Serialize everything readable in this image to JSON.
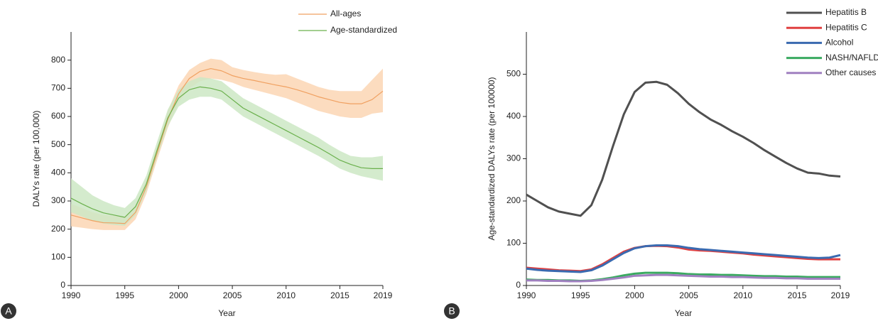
{
  "chart_data": [
    {
      "type": "line",
      "panel_label": "A",
      "xlabel": "Year",
      "ylabel": "DALYs rate (per 100,000)",
      "x": [
        1990,
        1991,
        1992,
        1993,
        1994,
        1995,
        1996,
        1997,
        1998,
        1999,
        2000,
        2001,
        2002,
        2003,
        2004,
        2005,
        2006,
        2007,
        2008,
        2009,
        2010,
        2011,
        2012,
        2013,
        2014,
        2015,
        2016,
        2017,
        2018,
        2019
      ],
      "xlim": [
        1990,
        2019
      ],
      "xticks": [
        1990,
        1995,
        2000,
        2005,
        2010,
        2015,
        2019
      ],
      "ylim": [
        0,
        900
      ],
      "yticks": [
        0,
        100,
        200,
        300,
        400,
        500,
        600,
        700,
        800
      ],
      "legend": "top-right",
      "series": [
        {
          "name": "All-ages",
          "color": "#f0a060",
          "band_color": "#fbd6b4",
          "values": [
            250,
            240,
            230,
            223,
            222,
            220,
            260,
            350,
            470,
            590,
            680,
            735,
            760,
            770,
            762,
            745,
            735,
            728,
            720,
            712,
            705,
            695,
            683,
            670,
            660,
            650,
            645,
            645,
            660,
            690
          ],
          "lower": [
            210,
            205,
            200,
            197,
            197,
            197,
            235,
            325,
            445,
            560,
            650,
            700,
            725,
            735,
            730,
            720,
            705,
            695,
            685,
            675,
            665,
            650,
            635,
            620,
            610,
            600,
            595,
            595,
            610,
            615
          ],
          "upper": [
            290,
            275,
            260,
            250,
            248,
            245,
            285,
            375,
            495,
            620,
            710,
            765,
            790,
            805,
            800,
            775,
            765,
            758,
            752,
            748,
            750,
            735,
            720,
            705,
            695,
            690,
            690,
            690,
            730,
            770
          ]
        },
        {
          "name": "Age-standardized",
          "color": "#6ab04c",
          "band_color": "#cde8c4",
          "values": [
            310,
            290,
            272,
            258,
            250,
            242,
            280,
            360,
            480,
            595,
            665,
            695,
            705,
            700,
            690,
            660,
            630,
            610,
            590,
            570,
            550,
            530,
            510,
            490,
            468,
            445,
            430,
            418,
            415,
            415
          ],
          "lower": [
            260,
            245,
            230,
            220,
            215,
            212,
            250,
            335,
            455,
            565,
            635,
            660,
            670,
            670,
            660,
            630,
            600,
            580,
            560,
            540,
            520,
            500,
            480,
            460,
            438,
            415,
            400,
            388,
            380,
            372
          ],
          "upper": [
            380,
            350,
            320,
            300,
            285,
            275,
            310,
            390,
            510,
            625,
            695,
            725,
            740,
            735,
            725,
            695,
            665,
            645,
            625,
            605,
            585,
            565,
            545,
            525,
            500,
            478,
            460,
            455,
            455,
            460
          ]
        }
      ]
    },
    {
      "type": "line",
      "panel_label": "B",
      "xlabel": "Year",
      "ylabel": "Age-standardized DALYs rate (per 100000)",
      "x": [
        1990,
        1991,
        1992,
        1993,
        1994,
        1995,
        1996,
        1997,
        1998,
        1999,
        2000,
        2001,
        2002,
        2003,
        2004,
        2005,
        2006,
        2007,
        2008,
        2009,
        2010,
        2011,
        2012,
        2013,
        2014,
        2015,
        2016,
        2017,
        2018,
        2019
      ],
      "xlim": [
        1990,
        2019
      ],
      "xticks": [
        1990,
        1995,
        2000,
        2005,
        2010,
        2015,
        2019
      ],
      "ylim": [
        0,
        600
      ],
      "yticks": [
        0,
        100,
        200,
        300,
        400,
        500
      ],
      "legend": "top-right",
      "series": [
        {
          "name": "Hepatitis B",
          "color": "#505050",
          "values": [
            215,
            200,
            185,
            175,
            170,
            165,
            190,
            250,
            330,
            405,
            458,
            480,
            482,
            475,
            455,
            430,
            410,
            393,
            380,
            365,
            352,
            337,
            320,
            305,
            290,
            277,
            267,
            265,
            260,
            258
          ]
        },
        {
          "name": "Hepatitis C",
          "color": "#e04040",
          "values": [
            42,
            40,
            38,
            36,
            35,
            34,
            38,
            50,
            65,
            80,
            89,
            93,
            94,
            93,
            90,
            85,
            83,
            82,
            80,
            78,
            76,
            73,
            71,
            69,
            67,
            65,
            63,
            62,
            62,
            62
          ]
        },
        {
          "name": "Alcohol",
          "color": "#3a6ab0",
          "values": [
            40,
            37,
            35,
            34,
            33,
            32,
            36,
            47,
            62,
            77,
            88,
            93,
            95,
            95,
            93,
            89,
            86,
            84,
            82,
            80,
            78,
            76,
            74,
            72,
            70,
            68,
            66,
            65,
            66,
            72
          ]
        },
        {
          "name": "NASH/NAFLD",
          "color": "#3aaa60",
          "values": [
            14,
            13,
            13,
            12,
            12,
            11,
            12,
            15,
            19,
            24,
            28,
            30,
            30,
            30,
            29,
            27,
            26,
            26,
            25,
            25,
            24,
            23,
            22,
            22,
            21,
            21,
            20,
            20,
            20,
            20
          ]
        },
        {
          "name": "Other causes",
          "color": "#a080c0",
          "values": [
            12,
            12,
            11,
            11,
            10,
            10,
            11,
            13,
            16,
            19,
            23,
            24,
            25,
            25,
            24,
            23,
            22,
            21,
            21,
            20,
            20,
            19,
            18,
            18,
            17,
            17,
            16,
            16,
            16,
            16
          ]
        }
      ]
    }
  ]
}
